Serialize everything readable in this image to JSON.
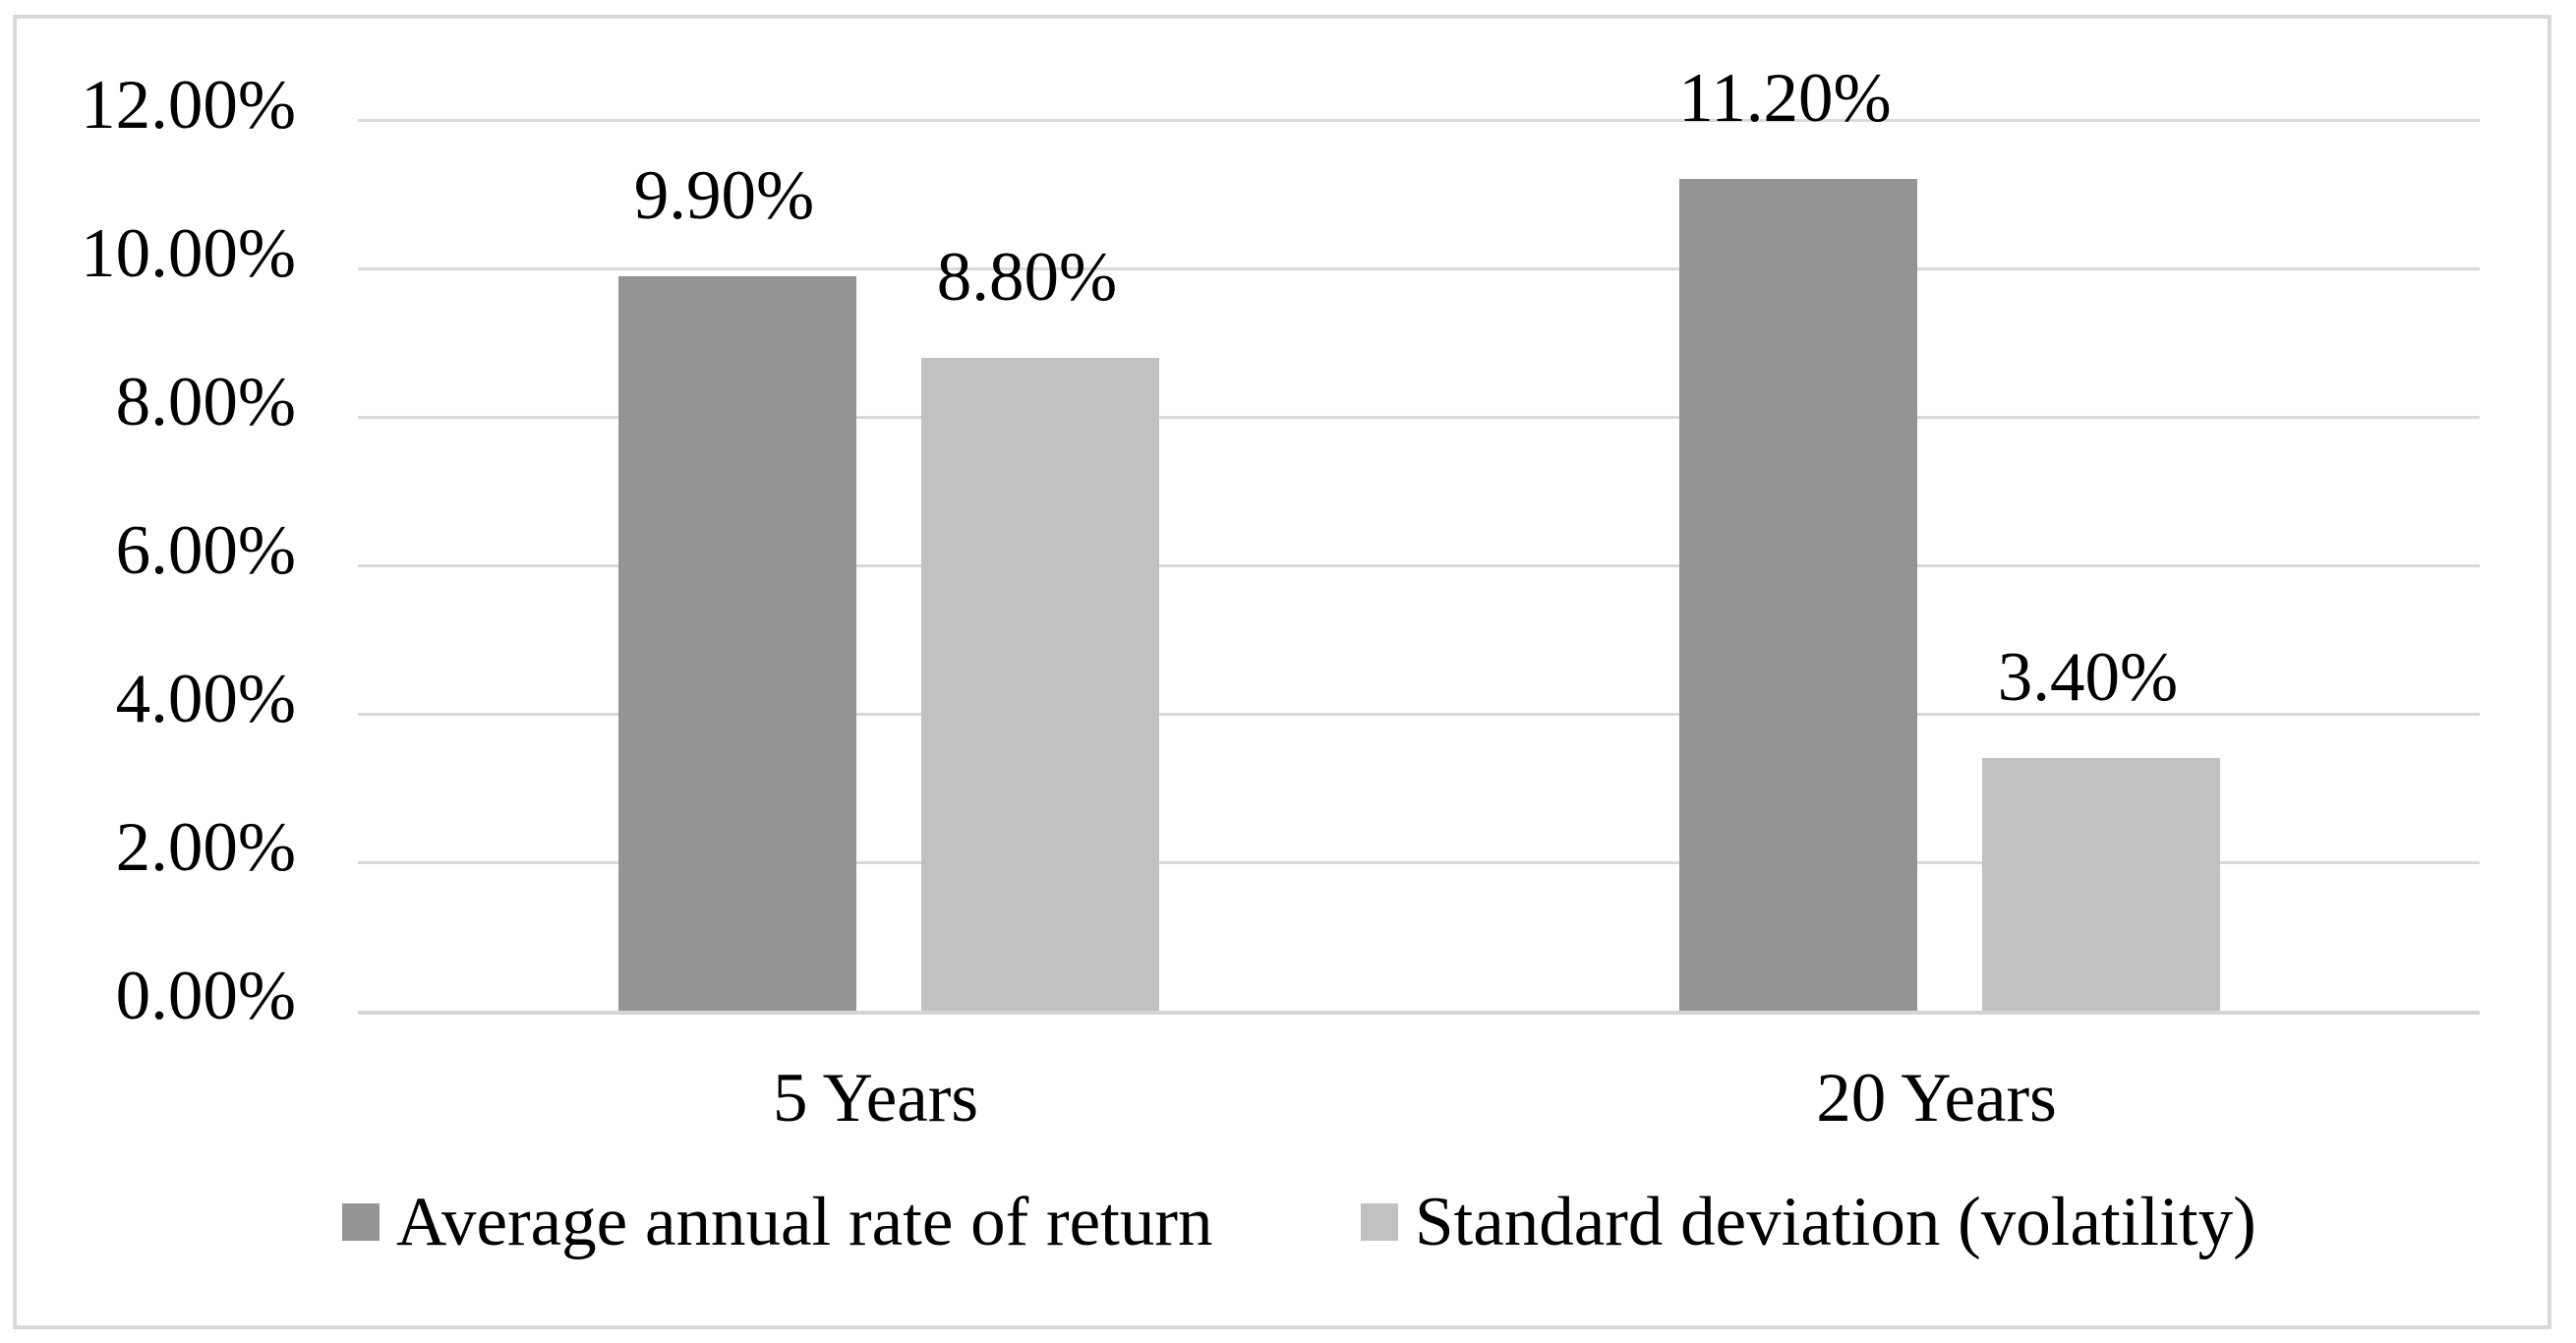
{
  "chart_data": {
    "type": "bar",
    "title": "",
    "categories": [
      "5 Years",
      "20 Years"
    ],
    "series": [
      {
        "name": "Average annual rate of return",
        "color": "#949494",
        "values": [
          9.9,
          11.2
        ],
        "data_labels": [
          "9.90%",
          "11.20%"
        ]
      },
      {
        "name": "Standard deviation (volatility)",
        "color": "#c1c1c1",
        "values": [
          8.8,
          3.4
        ],
        "data_labels": [
          "8.80%",
          "3.40%"
        ]
      }
    ],
    "y_axis": {
      "min": 0,
      "max": 12,
      "step": 2,
      "tick_labels": [
        "0.00%",
        "2.00%",
        "4.00%",
        "6.00%",
        "8.00%",
        "10.00%",
        "12.00%"
      ]
    },
    "x_axis": {
      "labels": [
        "5 Years",
        "20 Years"
      ]
    },
    "grid": true,
    "legend_position": "bottom",
    "colors": {
      "gridline": "#d9d9d9",
      "axis_line": "#d5d5d5",
      "frame_border": "#d9d9d9",
      "background": "#ffffff",
      "text": "#000000"
    }
  }
}
